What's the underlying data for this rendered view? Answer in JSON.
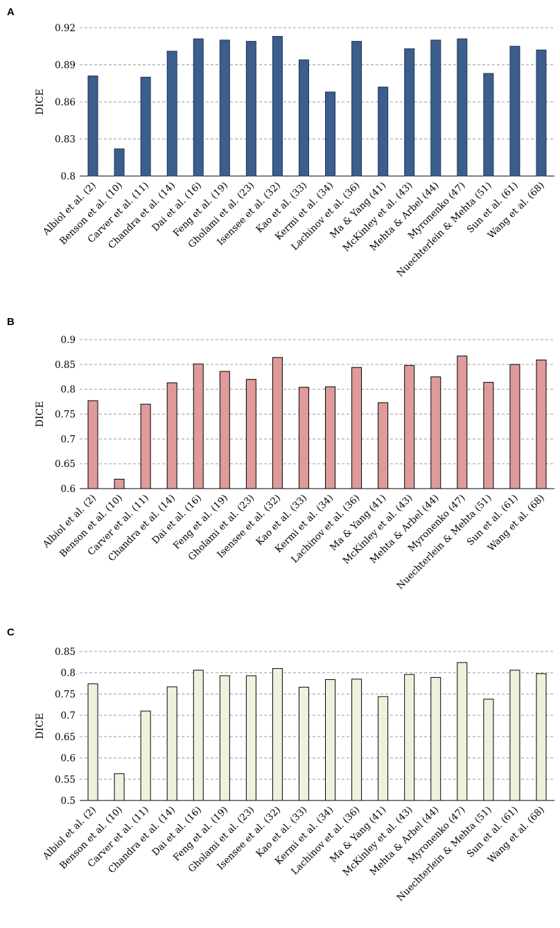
{
  "chart_data": [
    {
      "panel": "A",
      "type": "bar",
      "ylabel": "DICE",
      "xlabel": "",
      "ylim": [
        0.8,
        0.92
      ],
      "yticks": [
        "0.8",
        "0.83",
        "0.86",
        "0.89",
        "0.92"
      ],
      "grid": true,
      "bar_color": "#3b5e8c",
      "bar_stroke": "#1f3557",
      "categories": [
        "Albiol et al. (2)",
        "Benson et al. (10)",
        "Carver et al. (11)",
        "Chandra et al. (14)",
        "Dai et al. (16)",
        "Feng et al. (19)",
        "Gholami et al. (23)",
        "Isensee et al. (32)",
        "Kao et al. (33)",
        "Kermi et al. (34)",
        "Lachinov et al. (36)",
        "Ma & Yang (41)",
        "McKinley et al. (43)",
        "Mehta & Arbel (44)",
        "Myronenko (47)",
        "Nuechterlein & Mehta (51)",
        "Sun et al. (61)",
        "Wang et al. (68)"
      ],
      "values": [
        0.881,
        0.822,
        0.88,
        0.901,
        0.911,
        0.91,
        0.909,
        0.913,
        0.894,
        0.868,
        0.909,
        0.872,
        0.903,
        0.91,
        0.911,
        0.883,
        0.905,
        0.902
      ]
    },
    {
      "panel": "B",
      "type": "bar",
      "ylabel": "DICE",
      "xlabel": "",
      "ylim": [
        0.6,
        0.9
      ],
      "yticks": [
        "0.6",
        "0.65",
        "0.7",
        "0.75",
        "0.8",
        "0.85",
        "0.9"
      ],
      "grid": true,
      "bar_color": "#df9a9a",
      "bar_stroke": "#000000",
      "categories": [
        "Albiol et al. (2)",
        "Benson et al. (10)",
        "Carver et al. (11)",
        "Chandra et al. (14)",
        "Dai et al. (16)",
        "Feng et al. (19)",
        "Gholami et al. (23)",
        "Isensee et al. (32)",
        "Kao et al. (33)",
        "Kermi et al. (34)",
        "Lachinov et al. (36)",
        "Ma & Yang (41)",
        "McKinley et al. (43)",
        "Mehta & Arbel (44)",
        "Myronenko (47)",
        "Nuechterlein & Mehta (51)",
        "Sun et al. (61)",
        "Wang et al. (68)"
      ],
      "values": [
        0.777,
        0.619,
        0.77,
        0.813,
        0.851,
        0.836,
        0.82,
        0.864,
        0.804,
        0.805,
        0.844,
        0.773,
        0.848,
        0.825,
        0.867,
        0.814,
        0.85,
        0.859
      ]
    },
    {
      "panel": "C",
      "type": "bar",
      "ylabel": "DICE",
      "xlabel": "",
      "ylim": [
        0.5,
        0.85
      ],
      "yticks": [
        "0.5",
        "0.55",
        "0.6",
        "0.65",
        "0.7",
        "0.75",
        "0.8",
        "0.85"
      ],
      "grid": true,
      "bar_color": "#eef2dc",
      "bar_stroke": "#000000",
      "categories": [
        "Albiol et al. (2)",
        "Benson et al. (10)",
        "Carver et al. (11)",
        "Chandra et al. (14)",
        "Dai et al. (16)",
        "Feng et al. (19)",
        "Gholami et al. (23)",
        "Isensee et al. (32)",
        "Kao et al. (33)",
        "Kermi et al. (34)",
        "Lachinov et al. (36)",
        "Ma & Yang (41)",
        "McKinley et al. (43)",
        "Mehta & Arbel (44)",
        "Myronenko (47)",
        "Nuechterlein & Mehta (51)",
        "Sun et al. (61)",
        "Wang et al. (68)"
      ],
      "values": [
        0.774,
        0.563,
        0.71,
        0.767,
        0.806,
        0.793,
        0.793,
        0.81,
        0.766,
        0.784,
        0.785,
        0.744,
        0.796,
        0.789,
        0.824,
        0.738,
        0.806,
        0.798
      ]
    }
  ]
}
